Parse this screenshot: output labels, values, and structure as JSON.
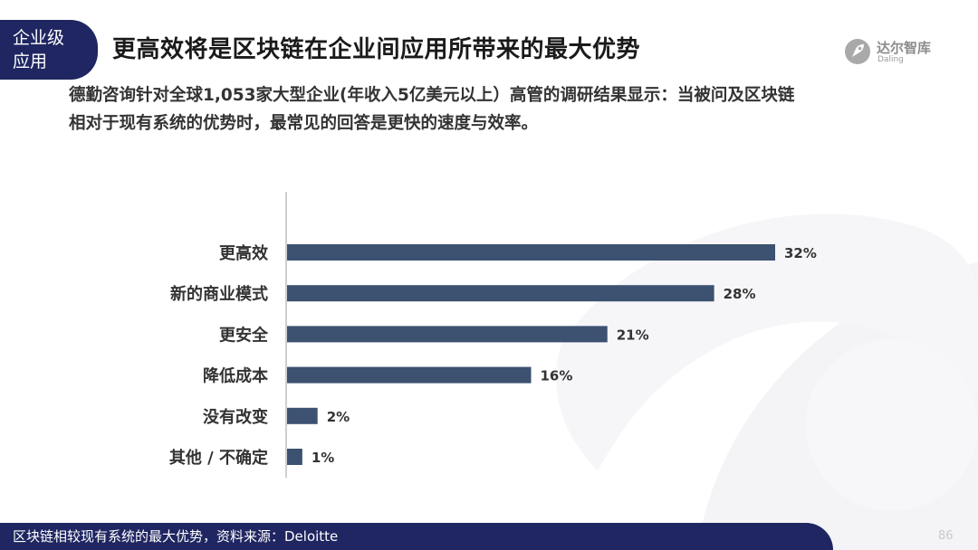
{
  "header": {
    "section_tag_line1": "企业级",
    "section_tag_line2": "应用",
    "title": "更高效将是区块链在企业间应用所带来的最大优势",
    "logo_text": "达尔智库",
    "logo_subtext": "Daling"
  },
  "subtitle": {
    "line1": "德勤咨询针对全球1,053家大型企业(年收入5亿美元以上）高管的调研结果显示：当被问及区块链",
    "line2": "相对于现有系统的优势时，最常见的回答是更快的速度与效率。"
  },
  "chart_data": {
    "type": "bar",
    "orientation": "horizontal",
    "categories": [
      "更高效",
      "新的商业模式",
      "更安全",
      "降低成本",
      "没有改变",
      "其他 / 不确定"
    ],
    "values": [
      32,
      28,
      21,
      16,
      2,
      1
    ],
    "value_labels": [
      "32%",
      "28%",
      "21%",
      "16%",
      "2%",
      "1%"
    ],
    "unit": "%",
    "xlim": [
      0,
      32
    ],
    "bar_color": "#3d5170",
    "grid": false,
    "legend": "none"
  },
  "footer": {
    "note": "区块链相较现有系统的最大优势，资料来源：Deloitte",
    "page_number": "86"
  },
  "colors": {
    "accent": "#1f2661",
    "bar": "#3d5170",
    "decoration": "#f4f4f7"
  }
}
